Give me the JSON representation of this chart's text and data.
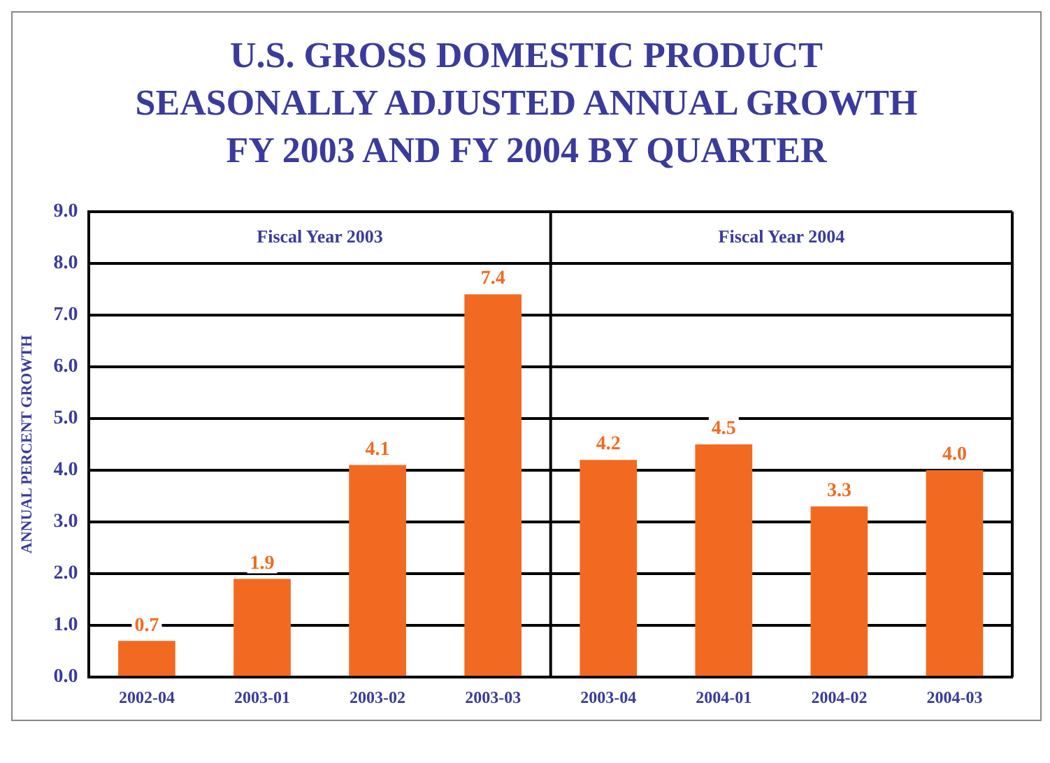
{
  "chart_data": {
    "type": "bar",
    "title": "U.S. GROSS DOMESTIC PRODUCT SEASONALLY ADJUSTED ANNUAL GROWTH FY 2003 AND FY 2004 BY QUARTER",
    "ylabel": "ANNUAL PERCENT GROWTH",
    "categories": [
      "2002-04",
      "2003-01",
      "2003-02",
      "2003-03",
      "2003-04",
      "2004-01",
      "2004-02",
      "2004-03"
    ],
    "values": [
      0.7,
      1.9,
      4.1,
      7.4,
      4.2,
      4.5,
      3.3,
      4.0
    ],
    "value_labels": [
      "0.7",
      "1.9",
      "4.1",
      "7.4",
      "4.2",
      "4.5",
      "3.3",
      "4.0"
    ],
    "color": "#f26a21",
    "ylim": [
      0,
      9
    ],
    "yticks": [
      {
        "value": 0,
        "label": "0.0"
      },
      {
        "value": 1,
        "label": "1.0"
      },
      {
        "value": 2,
        "label": "2.0"
      },
      {
        "value": 3,
        "label": "3.0"
      },
      {
        "value": 4,
        "label": "4.0"
      },
      {
        "value": 5,
        "label": "5.0"
      },
      {
        "value": 6,
        "label": "6.0"
      },
      {
        "value": 7,
        "label": "7.0"
      },
      {
        "value": 8,
        "label": "8.0"
      },
      {
        "value": 9,
        "label": "9.0"
      }
    ],
    "annotations": [
      "Fiscal Year 2003",
      "Fiscal Year 2004"
    ],
    "grid": "y",
    "legend": false
  }
}
